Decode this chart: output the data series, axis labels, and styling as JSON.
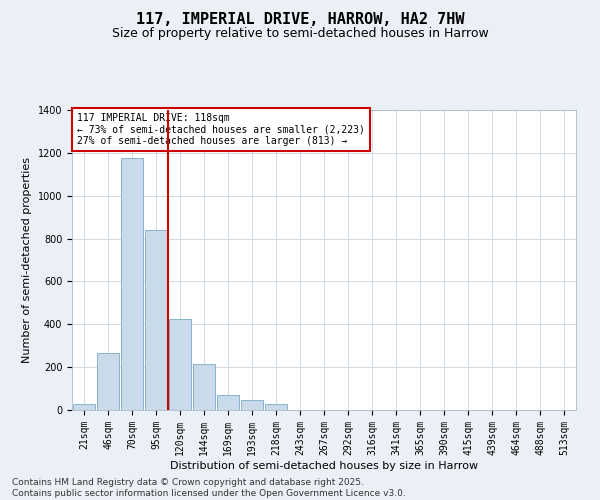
{
  "title1": "117, IMPERIAL DRIVE, HARROW, HA2 7HW",
  "title2": "Size of property relative to semi-detached houses in Harrow",
  "xlabel": "Distribution of semi-detached houses by size in Harrow",
  "ylabel": "Number of semi-detached properties",
  "bar_labels": [
    "21sqm",
    "46sqm",
    "70sqm",
    "95sqm",
    "120sqm",
    "144sqm",
    "169sqm",
    "193sqm",
    "218sqm",
    "243sqm",
    "267sqm",
    "292sqm",
    "316sqm",
    "341sqm",
    "365sqm",
    "390sqm",
    "415sqm",
    "439sqm",
    "464sqm",
    "488sqm",
    "513sqm"
  ],
  "bar_values": [
    30,
    265,
    1175,
    840,
    425,
    215,
    70,
    45,
    30,
    0,
    0,
    0,
    0,
    0,
    0,
    0,
    0,
    0,
    0,
    0,
    0
  ],
  "bar_color": "#c9daea",
  "bar_edge_color": "#7aaac8",
  "vline_color": "#cc0000",
  "annotation_text": "117 IMPERIAL DRIVE: 118sqm\n← 73% of semi-detached houses are smaller (2,223)\n27% of semi-detached houses are larger (813) →",
  "annotation_box_color": "#ffffff",
  "annotation_box_edge": "#cc0000",
  "ylim": [
    0,
    1400
  ],
  "yticks": [
    0,
    200,
    400,
    600,
    800,
    1000,
    1200,
    1400
  ],
  "footnote": "Contains HM Land Registry data © Crown copyright and database right 2025.\nContains public sector information licensed under the Open Government Licence v3.0.",
  "bg_color": "#eaf0f6",
  "plot_bg_color": "#ffffff",
  "grid_color": "#c8d4de",
  "title1_fontsize": 11,
  "title2_fontsize": 9,
  "xlabel_fontsize": 8,
  "ylabel_fontsize": 8,
  "tick_fontsize": 7,
  "footnote_fontsize": 6.5
}
